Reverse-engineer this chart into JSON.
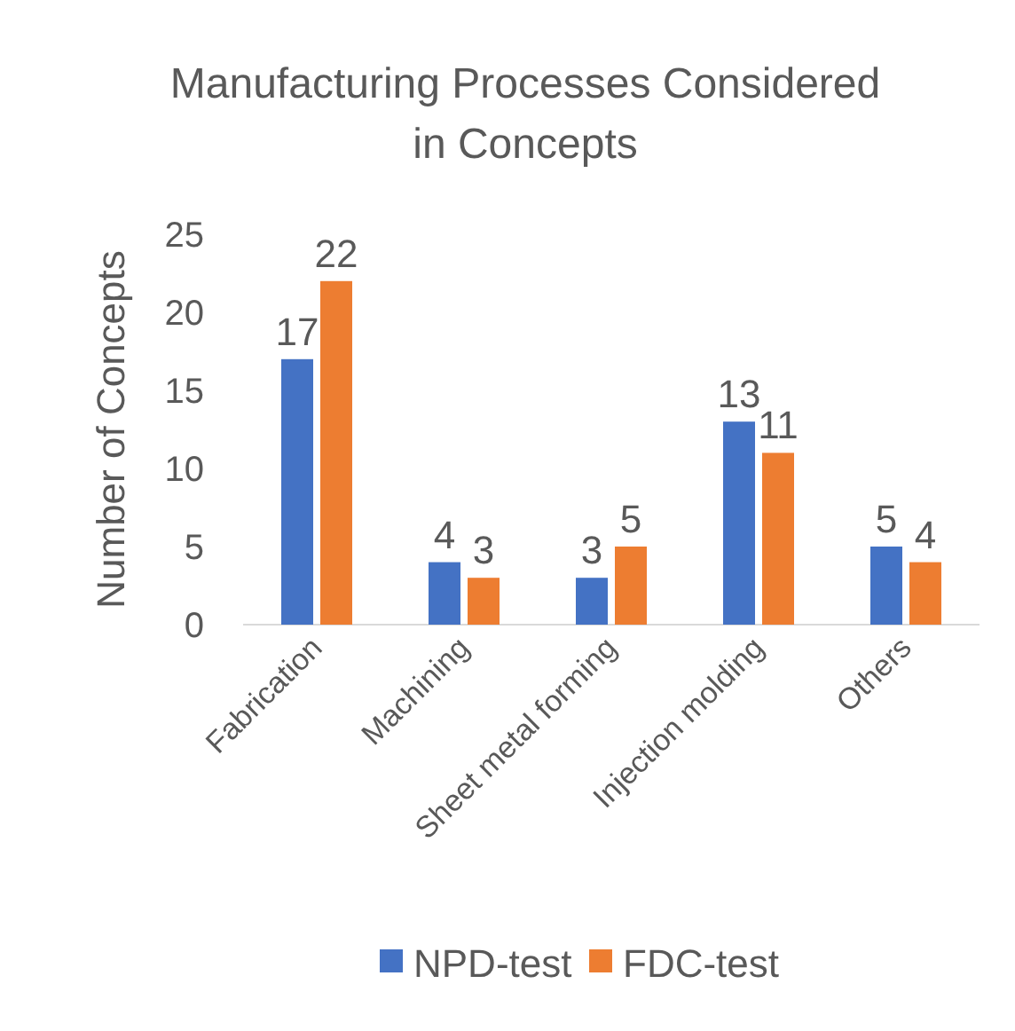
{
  "chart_data": {
    "type": "bar",
    "title": "Manufacturing Processes Considered in Concepts",
    "ylabel": "Number of Concepts",
    "categories": [
      "Fabrication",
      "Machining",
      "Sheet metal forming",
      "Injection molding",
      "Others"
    ],
    "series": [
      {
        "name": "NPD-test",
        "color": "#4472c4",
        "values": [
          17,
          4,
          3,
          13,
          5
        ]
      },
      {
        "name": "FDC-test",
        "color": "#ed7d31",
        "values": [
          22,
          3,
          5,
          11,
          4
        ]
      }
    ],
    "ylim": [
      0,
      25
    ],
    "yticks": [
      0,
      5,
      10,
      15,
      20,
      25
    ],
    "data_labels": true,
    "legend": "bottom",
    "grid": false
  }
}
